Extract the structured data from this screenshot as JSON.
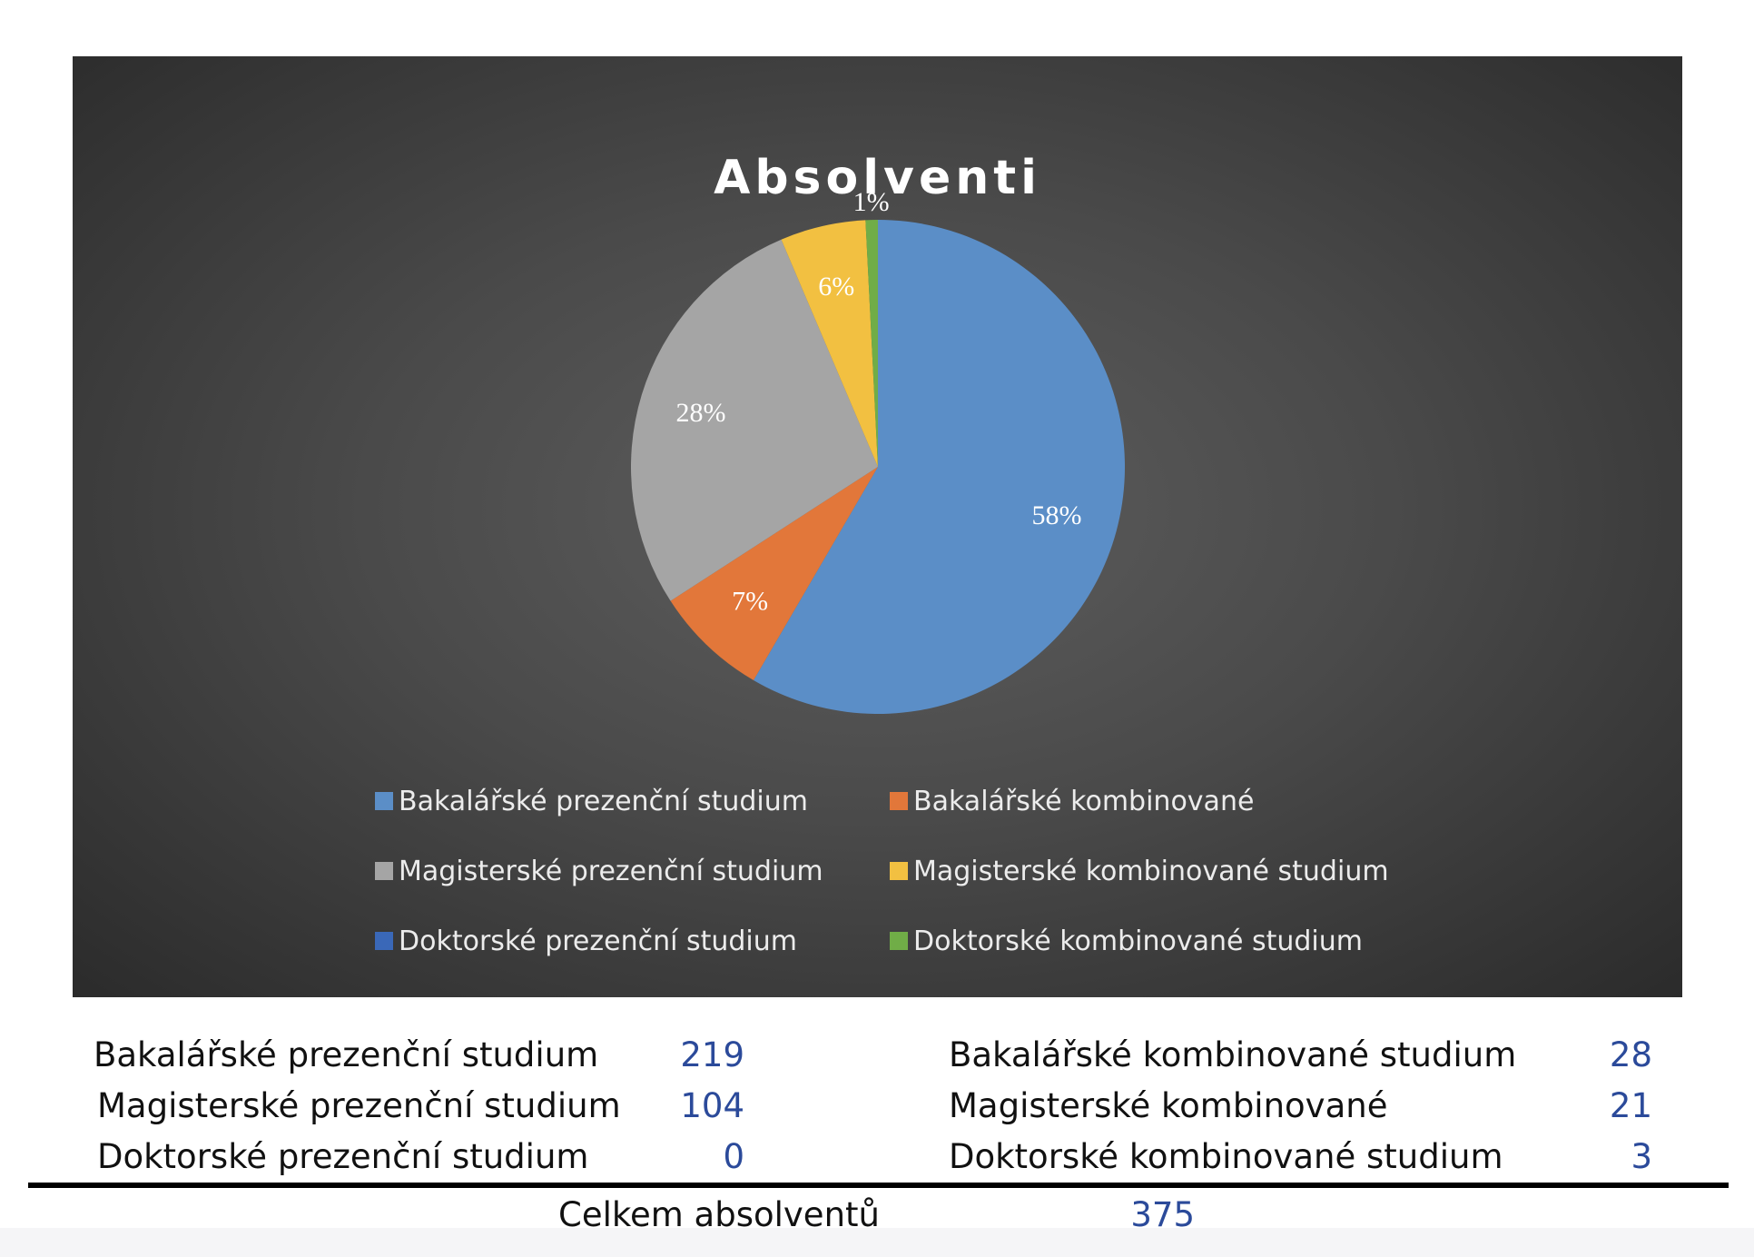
{
  "chart_data": {
    "type": "pie",
    "title": "Absolventi",
    "slices": [
      {
        "name": "Bakalářské prezenční studium",
        "value": 219,
        "percent_label": "58%",
        "color": "#5b8ec7"
      },
      {
        "name": "Bakalářské kombinované",
        "value": 28,
        "percent_label": "7%",
        "color": "#e2773a"
      },
      {
        "name": "Magisterské prezenční studium",
        "value": 104,
        "percent_label": "28%",
        "color": "#a5a5a5"
      },
      {
        "name": "Magisterské kombinované studium",
        "value": 21,
        "percent_label": "6%",
        "color": "#f2c041"
      },
      {
        "name": "Doktorské prezenční studium",
        "value": 0,
        "percent_label": "",
        "color": "#3a68b8"
      },
      {
        "name": "Doktorské kombinované studium",
        "value": 3,
        "percent_label": "1%",
        "color": "#70ad47"
      }
    ],
    "legend_position": "bottom",
    "background": "#3f3f3f"
  },
  "table": {
    "rows": [
      {
        "left_label": "Bakalářské prezenční studium",
        "left_value": "219",
        "right_label": "Bakalářské kombinované studium",
        "right_value": "28"
      },
      {
        "left_label": "Magisterské prezenční studium",
        "left_value": "104",
        "right_label": "Magisterské kombinované",
        "right_value": "21"
      },
      {
        "left_label": "Doktorské prezenční studium",
        "left_value": "0",
        "right_label": "Doktorské kombinované studium",
        "right_value": "3"
      }
    ],
    "total_label": "Celkem absolventů",
    "total_value": "375"
  }
}
